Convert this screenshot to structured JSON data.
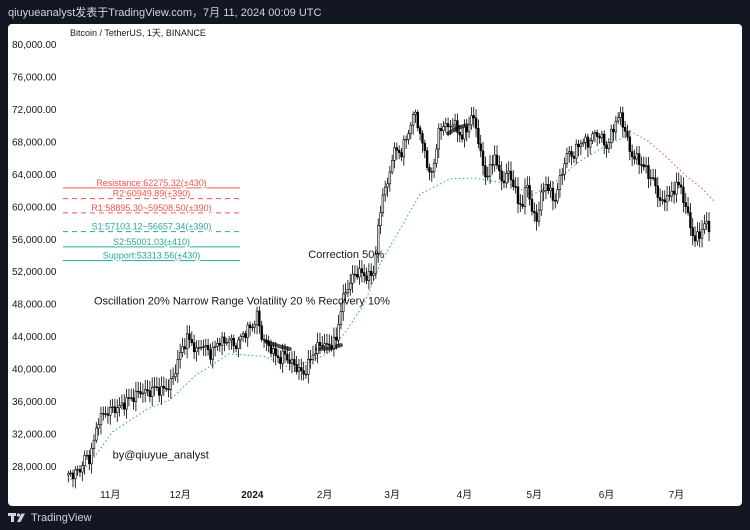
{
  "header": {
    "publish_line": "qiuyueanalyst发表于TradingView.com，7月 11, 2024 00:09 UTC"
  },
  "footer": {
    "brand": "TradingView",
    "logo_icon": "tradingview-logo-icon"
  },
  "chart_data": {
    "type": "candlestick",
    "title": "Bitcoin / TetherUS, 1天, BINANCE",
    "ylim": [
      26000,
      82000
    ],
    "y_ticks": [
      28000,
      32000,
      36000,
      40000,
      44000,
      48000,
      52000,
      56000,
      60000,
      64000,
      68000,
      72000,
      76000,
      80000
    ],
    "y_tick_labels": [
      "28,000.00",
      "32,000.00",
      "36,000.00",
      "40,000.00",
      "44,000.00",
      "48,000.00",
      "52,000.00",
      "56,000.00",
      "60,000.00",
      "64,000.00",
      "68,000.00",
      "72,000.00",
      "76,000.00",
      "80,000.00"
    ],
    "x_tick_labels": [
      {
        "label": "11月",
        "day": 19
      },
      {
        "label": "12月",
        "day": 49
      },
      {
        "label": "2024",
        "day": 80,
        "bold": true
      },
      {
        "label": "2月",
        "day": 111
      },
      {
        "label": "3月",
        "day": 140
      },
      {
        "label": "4月",
        "day": 171
      },
      {
        "label": "5月",
        "day": 201
      },
      {
        "label": "6月",
        "day": 232
      },
      {
        "label": "7月",
        "day": 262
      }
    ],
    "x_range_days": [
      0,
      285
    ],
    "price_path": [
      [
        1,
        26900
      ],
      [
        4,
        27100
      ],
      [
        6,
        27500
      ],
      [
        8,
        29000
      ],
      [
        10,
        28900
      ],
      [
        12,
        31000
      ],
      [
        14,
        33800
      ],
      [
        17,
        34500
      ],
      [
        20,
        35000
      ],
      [
        23,
        35200
      ],
      [
        26,
        36000
      ],
      [
        29,
        36500
      ],
      [
        32,
        37200
      ],
      [
        35,
        37000
      ],
      [
        38,
        37600
      ],
      [
        41,
        37300
      ],
      [
        44,
        37800
      ],
      [
        46,
        38800
      ],
      [
        48,
        41000
      ],
      [
        50,
        42500
      ],
      [
        52,
        43800
      ],
      [
        54,
        43200
      ],
      [
        56,
        42000
      ],
      [
        58,
        43000
      ],
      [
        60,
        42500
      ],
      [
        62,
        41800
      ],
      [
        64,
        42600
      ],
      [
        66,
        43500
      ],
      [
        68,
        43100
      ],
      [
        70,
        43800
      ],
      [
        72,
        42700
      ],
      [
        74,
        43300
      ],
      [
        76,
        44200
      ],
      [
        78,
        44800
      ],
      [
        80,
        45200
      ],
      [
        82,
        46500
      ],
      [
        84,
        44000
      ],
      [
        86,
        43000
      ],
      [
        88,
        42500
      ],
      [
        90,
        41500
      ],
      [
        92,
        41200
      ],
      [
        94,
        41800
      ],
      [
        96,
        40800
      ],
      [
        98,
        40500
      ],
      [
        100,
        39800
      ],
      [
        102,
        39300
      ],
      [
        104,
        40500
      ],
      [
        106,
        41800
      ],
      [
        108,
        42600
      ],
      [
        110,
        43200
      ],
      [
        112,
        42700
      ],
      [
        114,
        43100
      ],
      [
        116,
        43500
      ],
      [
        118,
        47500
      ],
      [
        120,
        49500
      ],
      [
        122,
        50600
      ],
      [
        124,
        51700
      ],
      [
        126,
        51900
      ],
      [
        128,
        51500
      ],
      [
        130,
        51300
      ],
      [
        132,
        51900
      ],
      [
        134,
        57000
      ],
      [
        136,
        61800
      ],
      [
        138,
        62500
      ],
      [
        140,
        66200
      ],
      [
        142,
        67000
      ],
      [
        144,
        66500
      ],
      [
        146,
        68500
      ],
      [
        148,
        70000
      ],
      [
        150,
        71800
      ],
      [
        152,
        68500
      ],
      [
        154,
        67000
      ],
      [
        156,
        63500
      ],
      [
        158,
        65500
      ],
      [
        160,
        69000
      ],
      [
        162,
        70200
      ],
      [
        164,
        69600
      ],
      [
        166,
        70500
      ],
      [
        168,
        69300
      ],
      [
        170,
        68600
      ],
      [
        172,
        69500
      ],
      [
        174,
        71100
      ],
      [
        176,
        69900
      ],
      [
        178,
        66300
      ],
      [
        180,
        63800
      ],
      [
        182,
        64400
      ],
      [
        184,
        66500
      ],
      [
        186,
        63800
      ],
      [
        188,
        63200
      ],
      [
        190,
        64200
      ],
      [
        192,
        62800
      ],
      [
        194,
        60600
      ],
      [
        196,
        60200
      ],
      [
        198,
        63000
      ],
      [
        200,
        59200
      ],
      [
        202,
        58500
      ],
      [
        204,
        61200
      ],
      [
        206,
        62900
      ],
      [
        208,
        61500
      ],
      [
        210,
        60800
      ],
      [
        212,
        63300
      ],
      [
        214,
        65500
      ],
      [
        216,
        66700
      ],
      [
        218,
        66200
      ],
      [
        220,
        67700
      ],
      [
        222,
        68000
      ],
      [
        224,
        67800
      ],
      [
        226,
        68700
      ],
      [
        228,
        69000
      ],
      [
        230,
        68300
      ],
      [
        232,
        67300
      ],
      [
        234,
        68800
      ],
      [
        236,
        70600
      ],
      [
        238,
        71100
      ],
      [
        240,
        69400
      ],
      [
        242,
        66800
      ],
      [
        244,
        66000
      ],
      [
        246,
        65600
      ],
      [
        248,
        64900
      ],
      [
        250,
        64000
      ],
      [
        252,
        63200
      ],
      [
        254,
        61500
      ],
      [
        256,
        60200
      ],
      [
        258,
        61500
      ],
      [
        260,
        61200
      ],
      [
        262,
        63000
      ],
      [
        264,
        62000
      ],
      [
        266,
        60000
      ],
      [
        268,
        57500
      ],
      [
        270,
        55800
      ],
      [
        272,
        56600
      ],
      [
        274,
        57800
      ],
      [
        276,
        57500
      ]
    ],
    "trend_lines": [
      {
        "name": "trail-support-line",
        "style": "dotted",
        "color": "#26a69a",
        "points": [
          [
            2,
            26300
          ],
          [
            10,
            28200
          ],
          [
            20,
            32200
          ],
          [
            35,
            35000
          ],
          [
            45,
            36200
          ],
          [
            55,
            39000
          ],
          [
            70,
            41800
          ],
          [
            85,
            41500
          ],
          [
            95,
            40200
          ],
          [
            104,
            40800
          ],
          [
            112,
            41800
          ],
          [
            120,
            44500
          ],
          [
            128,
            48000
          ],
          [
            135,
            53000
          ],
          [
            145,
            58000
          ],
          [
            152,
            61500
          ],
          [
            165,
            63400
          ],
          [
            175,
            63500
          ],
          [
            190,
            62800
          ],
          [
            200,
            61400
          ],
          [
            210,
            63000
          ],
          [
            220,
            65500
          ],
          [
            230,
            67200
          ],
          [
            240,
            68600
          ]
        ]
      },
      {
        "name": "trail-resistance-line",
        "style": "dotted",
        "color": "#ef5350",
        "points": [
          [
            242,
            69300
          ],
          [
            250,
            68000
          ],
          [
            258,
            66000
          ],
          [
            266,
            63800
          ],
          [
            273,
            62200
          ],
          [
            278,
            60700
          ]
        ]
      },
      {
        "name": "stop-transition-a",
        "style": "thick",
        "color": "#4f4f4f",
        "points": [
          [
            86,
            43300
          ],
          [
            92,
            42700
          ],
          [
            96,
            42400
          ]
        ]
      },
      {
        "name": "stop-transition-b",
        "style": "thick",
        "color": "#4f4f4f",
        "points": [
          [
            108,
            42400
          ],
          [
            114,
            42500
          ],
          [
            118,
            42900
          ]
        ]
      },
      {
        "name": "stop-transition-c",
        "style": "thick",
        "color": "#4f4f4f",
        "points": [
          [
            164,
            69000
          ],
          [
            168,
            69700
          ],
          [
            172,
            70000
          ]
        ]
      }
    ],
    "levels": [
      {
        "label": "Resistance:62275.32(±430)",
        "value": 62275.32,
        "color": "#ef5350",
        "style": "solid"
      },
      {
        "label": "R2:60949.89(±390)",
        "value": 60949.89,
        "color": "#ef5350",
        "style": "dashed"
      },
      {
        "label": "R1:58895.30~59508.50(±390)",
        "value": 59201.9,
        "color": "#ef5350",
        "style": "dashed"
      },
      {
        "label": "S1:57103.12~56657.34(±390)",
        "value": 56880.23,
        "color": "#26a69a",
        "style": "dashed"
      },
      {
        "label": "S2:55001.03(±410)",
        "value": 55001.03,
        "color": "#26a69a",
        "style": "solid"
      },
      {
        "label": "Support:53313.56(±430)",
        "value": 53313.56,
        "color": "#26a69a",
        "style": "solid"
      }
    ],
    "annotations": [
      {
        "text": "Correction 50%",
        "day": 104,
        "price": 53600
      },
      {
        "text": "Oscillation 20% Narrow Range Volatility 20 % Recovery 10%",
        "day": 12,
        "price": 47900
      },
      {
        "text": "by@qiuyue_analyst",
        "day": 20,
        "price": 28900
      }
    ]
  }
}
